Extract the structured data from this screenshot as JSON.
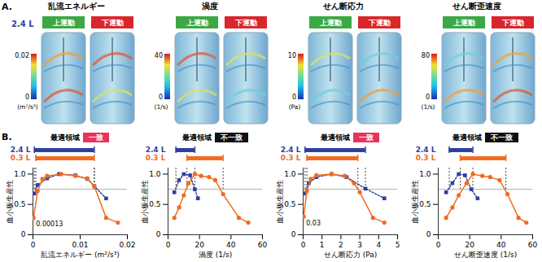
{
  "panel_a": {
    "label": "A.",
    "volume": "2.4 L",
    "buttons": [
      "上運動",
      "下運動"
    ],
    "panels": [
      {
        "title": "乱流エネルギー",
        "colorbar": {
          "min": 0,
          "max": 0.02,
          "unit": "(m²/s³)"
        }
      },
      {
        "title": "渦度",
        "colorbar": {
          "min": 0,
          "max": 40,
          "unit": "(1/s)"
        }
      },
      {
        "title": "せん断応力",
        "colorbar": {
          "min": 0,
          "max": 10,
          "unit": "(Pa)"
        }
      },
      {
        "title": "せん断歪速度",
        "colorbar": {
          "min": 0,
          "max": 80,
          "unit": "(1/s)"
        }
      }
    ]
  },
  "panel_b_label": "B.",
  "chart_data": [
    {
      "type": "line",
      "xlabel": "乱流エネルギー (m²/s³)",
      "ylabel": "血小板生産性",
      "xlim": [
        0,
        0.02
      ],
      "xticks": [
        0,
        0.01,
        0.02
      ],
      "ylim": [
        0,
        1.1
      ],
      "yticks": [
        0,
        0.5,
        {
          "value": 1,
          "label": "1.0"
        }
      ],
      "reference_line": 0.75,
      "series": [
        {
          "name": "2.4 L",
          "color": "#2e3f9e",
          "marker": "square",
          "line_style": "dotted",
          "x": [
            0.0003,
            0.001,
            0.003,
            0.0055,
            0.009,
            0.0115,
            0.013,
            0.0155
          ],
          "values": [
            0.68,
            0.82,
            0.93,
            1.0,
            0.98,
            0.92,
            0.8,
            0.6
          ]
        },
        {
          "name": "0.3 L",
          "color": "#f26b21",
          "marker": "circle",
          "line_style": "solid",
          "x": [
            0.00013,
            0.001,
            0.002,
            0.003,
            0.006,
            0.009,
            0.0115,
            0.013,
            0.0155,
            0.018
          ],
          "values": [
            0.28,
            0.72,
            0.92,
            0.97,
            1.0,
            0.97,
            0.93,
            0.8,
            0.28,
            0.2
          ]
        }
      ],
      "optimal_region": {
        "label": "最適領域",
        "match": "一致",
        "color": "#e8335a",
        "ranges": [
          {
            "name": "2.4 L",
            "from": 0.0003,
            "to": 0.013
          },
          {
            "name": "0.3 L",
            "from": 0.0006,
            "to": 0.013
          }
        ]
      },
      "annotation": {
        "text": "0.00013",
        "x": 0.00013,
        "y": 0.28
      }
    },
    {
      "type": "line",
      "xlabel": "渦度 (1/s)",
      "ylabel": "血小板生産性",
      "xlim": [
        0,
        60
      ],
      "xticks": [
        0,
        20,
        40,
        60
      ],
      "ylim": [
        0,
        1.1
      ],
      "yticks": [
        0,
        0.5,
        {
          "value": 1,
          "label": "1.0"
        }
      ],
      "reference_line": 0.75,
      "series": [
        {
          "name": "2.4 L",
          "color": "#2e3f9e",
          "marker": "square",
          "line_style": "dotted",
          "x": [
            4,
            7,
            10,
            14,
            17,
            19
          ],
          "values": [
            0.7,
            0.9,
            1.0,
            0.98,
            0.75,
            0.6
          ]
        },
        {
          "name": "0.3 L",
          "color": "#f26b21",
          "marker": "circle",
          "line_style": "solid",
          "x": [
            4,
            7,
            10,
            13,
            17,
            21,
            26,
            30,
            35,
            45,
            51
          ],
          "values": [
            0.28,
            0.45,
            0.65,
            0.85,
            1.0,
            0.97,
            0.95,
            0.9,
            0.67,
            0.28,
            0.2
          ]
        }
      ],
      "optimal_region": {
        "label": "最適領域",
        "match": "不一致",
        "color": "#111111",
        "ranges": [
          {
            "name": "2.4 L",
            "from": 5,
            "to": 17
          },
          {
            "name": "0.3 L",
            "from": 12,
            "to": 35
          }
        ]
      }
    },
    {
      "type": "line",
      "xlabel": "せん断応力 (Pa)",
      "ylabel": "血小板生産性",
      "xlim": [
        0,
        5
      ],
      "xticks": [
        0,
        1,
        2,
        3,
        4,
        5
      ],
      "ylim": [
        0,
        1.1
      ],
      "yticks": [
        0,
        0.5,
        {
          "value": 1,
          "label": "1.0"
        }
      ],
      "reference_line": 0.75,
      "series": [
        {
          "name": "2.4 L",
          "color": "#2e3f9e",
          "marker": "square",
          "line_style": "dotted",
          "x": [
            0.05,
            0.3,
            0.7,
            1.5,
            2.3,
            3.3,
            4.3
          ],
          "values": [
            0.68,
            0.85,
            0.95,
            1.0,
            0.95,
            0.76,
            0.6
          ]
        },
        {
          "name": "0.3 L",
          "color": "#f26b21",
          "marker": "circle",
          "line_style": "solid",
          "x": [
            0.03,
            0.2,
            0.4,
            0.7,
            1.5,
            2.2,
            2.7,
            3.0,
            3.7,
            4.3
          ],
          "values": [
            0.3,
            0.72,
            0.92,
            0.98,
            1.0,
            0.97,
            0.85,
            0.7,
            0.28,
            0.2
          ]
        }
      ],
      "optimal_region": {
        "label": "最適領域",
        "match": "一致",
        "color": "#e8335a",
        "ranges": [
          {
            "name": "2.4 L",
            "from": 0.1,
            "to": 3.3
          },
          {
            "name": "0.3 L",
            "from": 0.2,
            "to": 2.9
          }
        ]
      },
      "annotation": {
        "text": "0.03",
        "x": 0.03,
        "y": 0.3
      }
    },
    {
      "type": "line",
      "xlabel": "せん断歪速度 (1/s)",
      "ylabel": "血小板生産性",
      "xlim": [
        0,
        60
      ],
      "xticks": [
        0,
        20,
        40,
        60
      ],
      "ylim": [
        0,
        1.1
      ],
      "yticks": [
        0,
        0.5,
        {
          "value": 1,
          "label": "1.0"
        }
      ],
      "reference_line": 0.75,
      "series": [
        {
          "name": "2.4 L",
          "color": "#2e3f9e",
          "marker": "square",
          "line_style": "dotted",
          "x": [
            5,
            9,
            13,
            17,
            21,
            25
          ],
          "values": [
            0.7,
            0.85,
            1.0,
            0.98,
            0.75,
            0.6
          ]
        },
        {
          "name": "0.3 L",
          "color": "#f26b21",
          "marker": "circle",
          "line_style": "solid",
          "x": [
            5,
            9,
            13,
            18,
            22,
            28,
            33,
            39,
            44,
            51,
            56
          ],
          "values": [
            0.28,
            0.45,
            0.65,
            0.85,
            1.0,
            0.97,
            0.95,
            0.9,
            0.67,
            0.28,
            0.2
          ]
        }
      ],
      "optimal_region": {
        "label": "最適領域",
        "match": "不一致",
        "color": "#111111",
        "ranges": [
          {
            "name": "2.4 L",
            "from": 7,
            "to": 22
          },
          {
            "name": "0.3 L",
            "from": 14,
            "to": 43
          }
        ]
      }
    }
  ]
}
